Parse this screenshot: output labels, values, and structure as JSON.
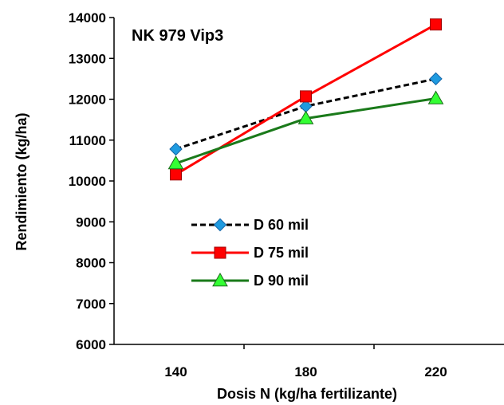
{
  "chart_data": {
    "type": "line",
    "title": "NK 979 Vip3",
    "xlabel": "Dosis N (kg/ha fertilizante)",
    "ylabel": "Rendimiento (kg/ha)",
    "categories": [
      "140",
      "180",
      "220"
    ],
    "ylim": [
      6000,
      14000
    ],
    "yticks": [
      "6000",
      "7000",
      "8000",
      "9000",
      "10000",
      "11000",
      "12000",
      "13000",
      "14000"
    ],
    "grid": false,
    "legend_position": "center-left",
    "series": [
      {
        "name": "D 60 mil",
        "values": [
          10780,
          11830,
          12500
        ],
        "color": "#000000",
        "marker": "diamond",
        "marker_color": "#1f9be0",
        "dashed": true
      },
      {
        "name": "D 75 mil",
        "values": [
          10160,
          12070,
          13830
        ],
        "color": "#ff0000",
        "marker": "square",
        "marker_color": "#ff0000",
        "dashed": false
      },
      {
        "name": "D 90 mil",
        "values": [
          10430,
          11530,
          12020
        ],
        "color": "#1a7a1a",
        "marker": "triangle",
        "marker_color": "#33ff33",
        "dashed": false
      }
    ]
  }
}
